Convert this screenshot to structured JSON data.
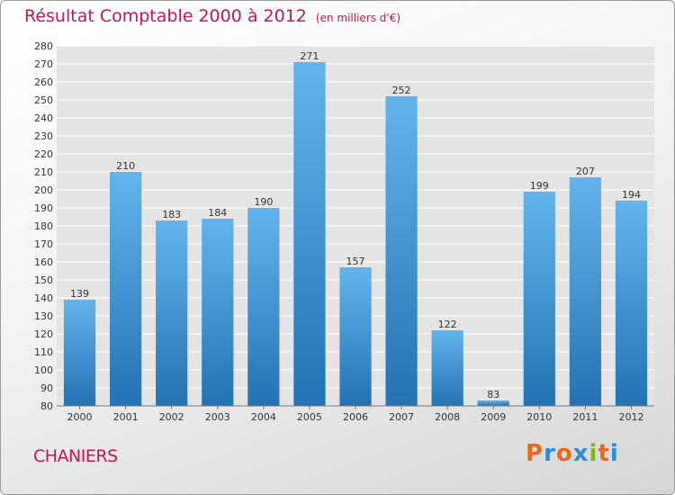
{
  "header": {
    "title": "Résultat Comptable 2000 à 2012",
    "subtitle": "(en milliers d'€)"
  },
  "footer": {
    "place": "CHANIERS",
    "logo": [
      "P",
      "r",
      "o",
      "x",
      "i",
      "t",
      "i"
    ]
  },
  "colors": {
    "title": "#c0185a",
    "bar_top": "#63b3ec",
    "bar_bottom": "#2474b5",
    "grid": "#ffffff",
    "plot_bg": "#e4e4e4",
    "logo": [
      "#e9691d",
      "#2f8dd6",
      "#e9691d",
      "#2f8dd6",
      "#7ab51d",
      "#e9691d",
      "#2f8dd6"
    ]
  },
  "chart_data": {
    "type": "bar",
    "title": "Résultat Comptable 2000 à 2012",
    "subtitle": "(en milliers d'€)",
    "categories": [
      "2000",
      "2001",
      "2002",
      "2003",
      "2004",
      "2005",
      "2006",
      "2007",
      "2008",
      "2009",
      "2010",
      "2011",
      "2012"
    ],
    "values": [
      139,
      210,
      183,
      184,
      190,
      271,
      157,
      252,
      122,
      83,
      199,
      207,
      194
    ],
    "xlabel": "",
    "ylabel": "",
    "ylim": [
      80,
      280
    ],
    "ytick_step": 10,
    "grid": true,
    "legend": "none"
  }
}
